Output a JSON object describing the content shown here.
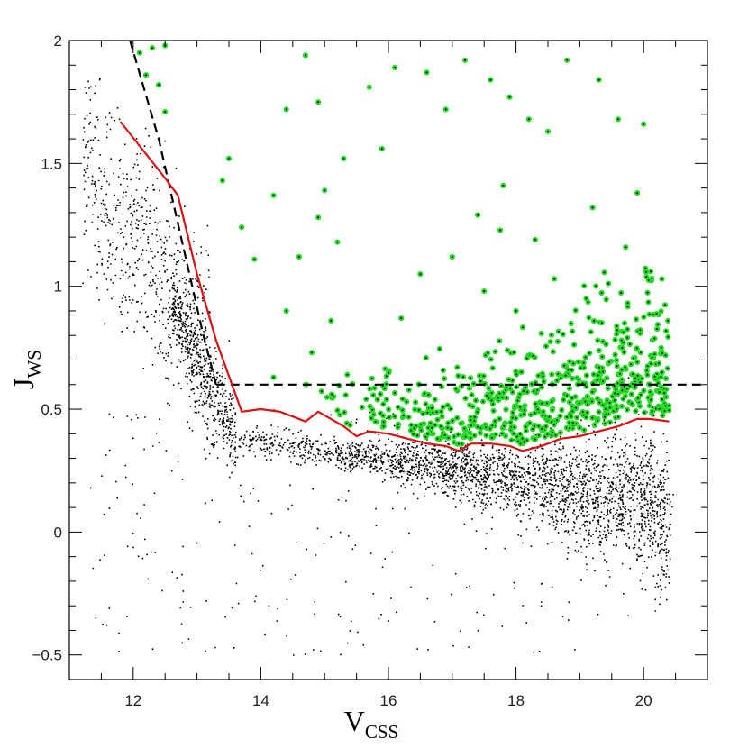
{
  "chart_data": {
    "type": "scatter",
    "title": "",
    "xlabel": "V",
    "xlabel_sub": "CSS",
    "ylabel": "J",
    "ylabel_sub": "WS",
    "xlim": [
      11.0,
      21.0
    ],
    "ylim": [
      -0.6,
      2.0
    ],
    "xticks": [
      12,
      14,
      16,
      18,
      20
    ],
    "xtick_labels": [
      "12",
      "14",
      "16",
      "18",
      "20"
    ],
    "yticks": [
      -0.5,
      0,
      0.5,
      1,
      1.5,
      2
    ],
    "ytick_labels": [
      "−0.5",
      "0",
      "0.5",
      "1",
      "1.5",
      "2"
    ],
    "grid": false,
    "legend": "none",
    "colors": {
      "background_points": "#000000",
      "selected_points": "#22dd22",
      "threshold_line": "#dd1111",
      "cut_line": "#000000"
    },
    "threshold_curve": {
      "x": [
        11.8,
        12.5,
        12.7,
        13.0,
        13.3,
        13.7,
        14.0,
        14.3,
        14.5,
        14.7,
        14.9,
        15.1,
        15.3,
        15.5,
        15.7,
        16.0,
        16.3,
        16.6,
        16.9,
        17.1,
        17.3,
        17.6,
        17.9,
        18.1,
        18.4,
        18.7,
        19.0,
        19.3,
        19.6,
        19.9,
        20.1,
        20.4
      ],
      "y": [
        1.67,
        1.44,
        1.37,
        1.05,
        0.78,
        0.49,
        0.5,
        0.49,
        0.47,
        0.45,
        0.49,
        0.46,
        0.43,
        0.39,
        0.41,
        0.4,
        0.38,
        0.36,
        0.35,
        0.33,
        0.36,
        0.36,
        0.35,
        0.33,
        0.35,
        0.38,
        0.39,
        0.41,
        0.43,
        0.46,
        0.46,
        0.45
      ]
    },
    "selection_cut": {
      "diagonal": {
        "x": [
          11.95,
          12.4,
          12.75,
          13.1,
          13.3
        ],
        "y": [
          2.0,
          1.6,
          1.2,
          0.8,
          0.6
        ]
      },
      "horizontal": {
        "x": [
          13.3,
          20.9
        ],
        "y": [
          0.6,
          0.6
        ]
      }
    },
    "series": [
      {
        "role": "background-stars",
        "color": "#000000",
        "count": 22000,
        "note_shape": "dense sequence from V~13 to V~20.4, J ~0.38 at V=13.5 descending to ~0.1 at V=20 with widening spread; sparse bright branch V 11.2-13 at J 0.8-1.8"
      },
      {
        "role": "selected-candidates",
        "color": "#22dd22",
        "count": 700,
        "x": [
          12.1,
          12.3,
          12.5,
          12.2,
          12.5,
          12.4,
          13.4,
          13.5,
          13.7,
          13.9,
          14.2,
          14.4,
          14.7,
          14.9,
          15.3,
          15.2,
          15.0,
          14.9,
          14.6,
          14.4,
          14.2,
          15.9,
          16.1,
          16.6,
          16.9,
          17.2,
          17.6,
          17.9,
          18.2,
          18.5,
          18.8,
          19.3,
          19.6,
          20.0,
          19.9,
          19.2,
          18.3,
          17.8,
          17.4,
          16.2,
          15.7,
          15.1,
          14.8,
          16.5,
          17.0,
          17.5,
          18.0,
          18.6,
          19.1,
          19.7
        ],
        "y": [
          1.95,
          1.97,
          1.98,
          1.86,
          1.71,
          1.82,
          1.43,
          1.52,
          1.24,
          1.11,
          1.37,
          1.72,
          1.94,
          1.75,
          1.52,
          1.18,
          1.39,
          1.28,
          1.12,
          0.9,
          0.63,
          1.56,
          1.89,
          1.87,
          1.72,
          1.92,
          1.84,
          1.77,
          1.68,
          1.63,
          1.92,
          1.84,
          1.68,
          1.66,
          1.38,
          1.32,
          1.19,
          1.41,
          1.29,
          0.87,
          1.81,
          0.86,
          0.73,
          1.05,
          1.12,
          0.98,
          0.9,
          1.03,
          0.95,
          0.85
        ]
      }
    ]
  }
}
